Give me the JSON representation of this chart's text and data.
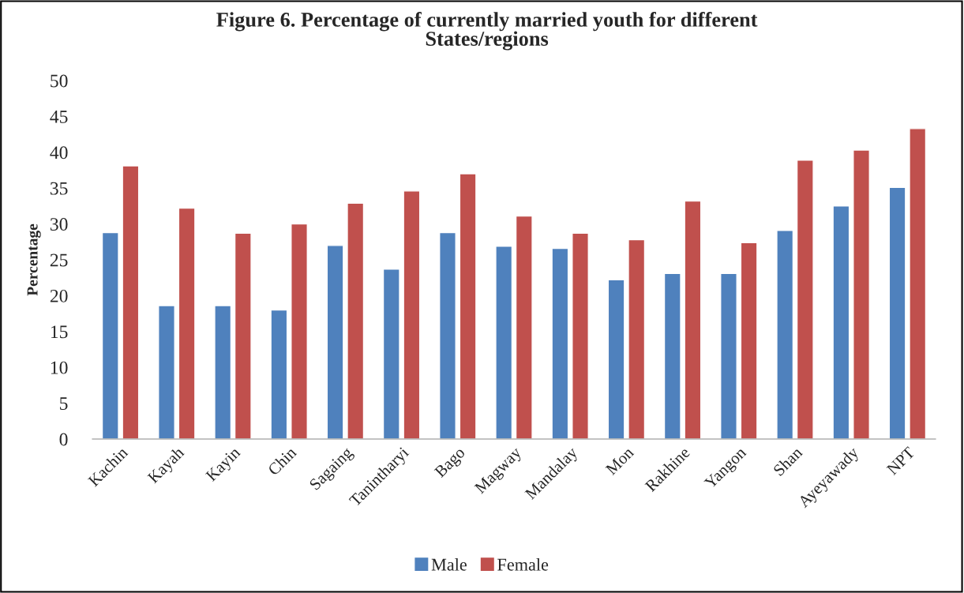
{
  "chart_data": {
    "type": "bar",
    "title": "Figure 6. Percentage of currently married youth for different\nStates/regions",
    "ylabel": "Percentage",
    "categories": [
      "Kachin",
      "Kayah",
      "Kayin",
      "Chin",
      "Sagaing",
      "Tanintharyi",
      "Bago",
      "Magway",
      "Mandalay",
      "Mon",
      "Rakhine",
      "Yangon",
      "Shan",
      "Ayeyawady",
      "NPT"
    ],
    "series": [
      {
        "name": "Male",
        "color": "#4f81bd",
        "values": [
          28.8,
          18.6,
          18.6,
          18.0,
          27.0,
          23.7,
          28.8,
          26.9,
          26.6,
          22.2,
          23.1,
          23.1,
          29.1,
          32.5,
          35.1
        ]
      },
      {
        "name": "Female",
        "color": "#c0504d",
        "values": [
          38.1,
          32.2,
          28.7,
          30.0,
          32.9,
          34.6,
          37.0,
          31.1,
          28.7,
          27.8,
          33.2,
          27.4,
          38.9,
          40.3,
          43.3
        ]
      }
    ],
    "ylim": [
      0,
      50
    ],
    "yticks": [
      0,
      5,
      10,
      15,
      20,
      25,
      30,
      35,
      40,
      45,
      50
    ],
    "grid": false,
    "legend": "bottom"
  }
}
